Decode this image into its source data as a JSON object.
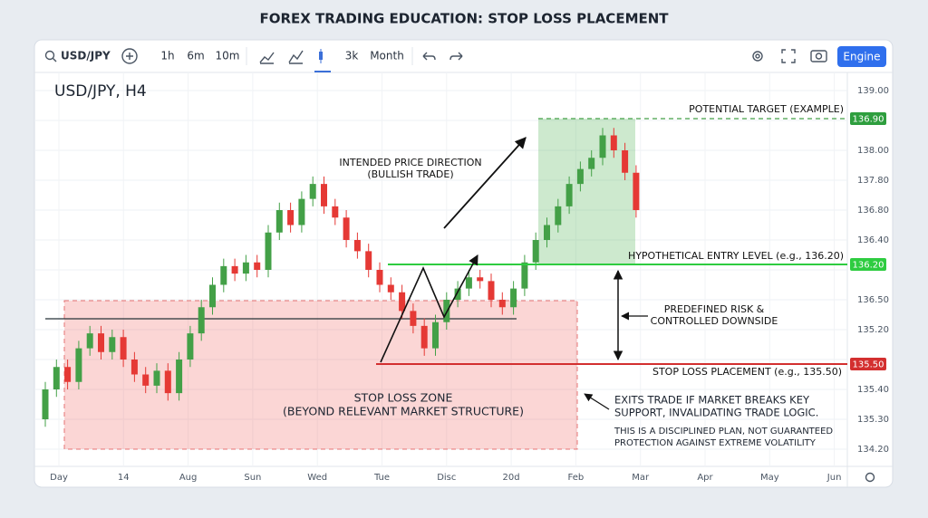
{
  "header": {
    "title": "FOREX TRADING EDUCATION: STOP LOSS PLACEMENT"
  },
  "toolbar": {
    "symbol": "USD/JPY",
    "intervals": [
      "1h",
      "6m",
      "10m"
    ],
    "ranges": [
      "3k",
      "Month"
    ],
    "button": "Engine"
  },
  "chart_data": {
    "type": "candlestick",
    "title": "USD/JPY, H4",
    "ylim": [
      134.2,
      139.0
    ],
    "y_labels": [
      "139.00",
      "138.00",
      "137.80",
      "136.80",
      "136.40",
      "136.50",
      "135.20",
      "135.40",
      "135.30",
      "134.20"
    ],
    "x_labels": [
      "Day",
      "14",
      "Aug",
      "Sun",
      "Wed",
      "Tue",
      "Disc",
      "20d",
      "Feb",
      "Mar",
      "Apr",
      "May",
      "Jun"
    ],
    "up_color": "#43a047",
    "down_color": "#e53935",
    "open": [
      134.6,
      135.0,
      135.3,
      135.1,
      135.55,
      135.75,
      135.5,
      135.7,
      135.4,
      135.2,
      135.05,
      135.25,
      134.95,
      135.4,
      135.75,
      136.1,
      136.4,
      136.65,
      136.55,
      136.7,
      136.6,
      137.1,
      137.4,
      137.2,
      137.55,
      137.75,
      137.45,
      137.3,
      137.0,
      136.85,
      136.6,
      136.4,
      136.3,
      136.05,
      135.85,
      135.55,
      135.9,
      136.2,
      136.35,
      136.5,
      136.45,
      136.2,
      136.1,
      136.35,
      136.7,
      137.0,
      137.2,
      137.45,
      137.75,
      137.95,
      138.1,
      138.4,
      138.2,
      137.9
    ],
    "high": [
      135.1,
      135.4,
      135.4,
      135.65,
      135.85,
      135.85,
      135.8,
      135.8,
      135.5,
      135.3,
      135.35,
      135.35,
      135.5,
      135.85,
      136.2,
      136.5,
      136.75,
      136.75,
      136.8,
      136.8,
      137.2,
      137.5,
      137.5,
      137.65,
      137.85,
      137.85,
      137.55,
      137.4,
      137.1,
      136.95,
      136.7,
      136.5,
      136.4,
      136.15,
      135.95,
      136.0,
      136.3,
      136.45,
      136.6,
      136.6,
      136.55,
      136.3,
      136.45,
      136.8,
      137.1,
      137.3,
      137.55,
      137.85,
      138.05,
      138.2,
      138.5,
      138.5,
      138.3,
      138.0
    ],
    "low": [
      134.5,
      134.9,
      135.0,
      135.0,
      135.45,
      135.4,
      135.4,
      135.3,
      135.1,
      134.95,
      134.95,
      134.85,
      134.85,
      135.3,
      135.65,
      136.0,
      136.3,
      136.45,
      136.45,
      136.5,
      136.5,
      137.0,
      137.1,
      137.1,
      137.45,
      137.35,
      137.2,
      136.9,
      136.75,
      136.5,
      136.3,
      136.2,
      135.95,
      135.75,
      135.45,
      135.45,
      135.8,
      136.1,
      136.25,
      136.35,
      136.1,
      136.0,
      136.0,
      136.25,
      136.6,
      136.9,
      137.1,
      137.35,
      137.65,
      137.85,
      138.0,
      138.1,
      137.8,
      137.3
    ],
    "close": [
      135.0,
      135.3,
      135.1,
      135.55,
      135.75,
      135.5,
      135.7,
      135.4,
      135.2,
      135.05,
      135.25,
      134.95,
      135.4,
      135.75,
      136.1,
      136.4,
      136.65,
      136.55,
      136.7,
      136.6,
      137.1,
      137.4,
      137.2,
      137.55,
      137.75,
      137.45,
      137.3,
      137.0,
      136.85,
      136.6,
      136.4,
      136.3,
      136.05,
      135.85,
      135.55,
      135.9,
      136.2,
      136.35,
      136.5,
      136.45,
      136.2,
      136.1,
      136.35,
      136.7,
      137.0,
      137.2,
      137.45,
      137.75,
      137.95,
      138.1,
      138.4,
      138.2,
      137.9,
      137.4
    ],
    "annotations": {
      "target": "POTENTIAL TARGET (EXAMPLE)",
      "target_tag": "136.90",
      "direction": [
        "INTENDED PRICE DIRECTION",
        "(BULLISH TRADE)"
      ],
      "entry": "HYPOTHETICAL ENTRY LEVEL (e.g., 136.20)",
      "entry_tag": "136.20",
      "risk": [
        "PREDEFINED RISK &",
        "CONTROLLED DOWNSIDE"
      ],
      "stop": "STOP LOSS PLACEMENT (e.g., 135.50)",
      "stop_tag": "135.50",
      "zone": [
        "STOP LOSS ZONE",
        "(BEYOND RELEVANT MARKET STRUCTURE)"
      ],
      "exit": [
        "EXITS TRADE IF MARKET BREAKS KEY",
        "SUPPORT, INVALIDATING TRADE LOGIC."
      ],
      "disclaimer": [
        "THIS IS A DISCIPLINED PLAN, NOT GUARANTEED",
        "PROTECTION AGAINST EXTREME VOLATILITY"
      ]
    }
  }
}
